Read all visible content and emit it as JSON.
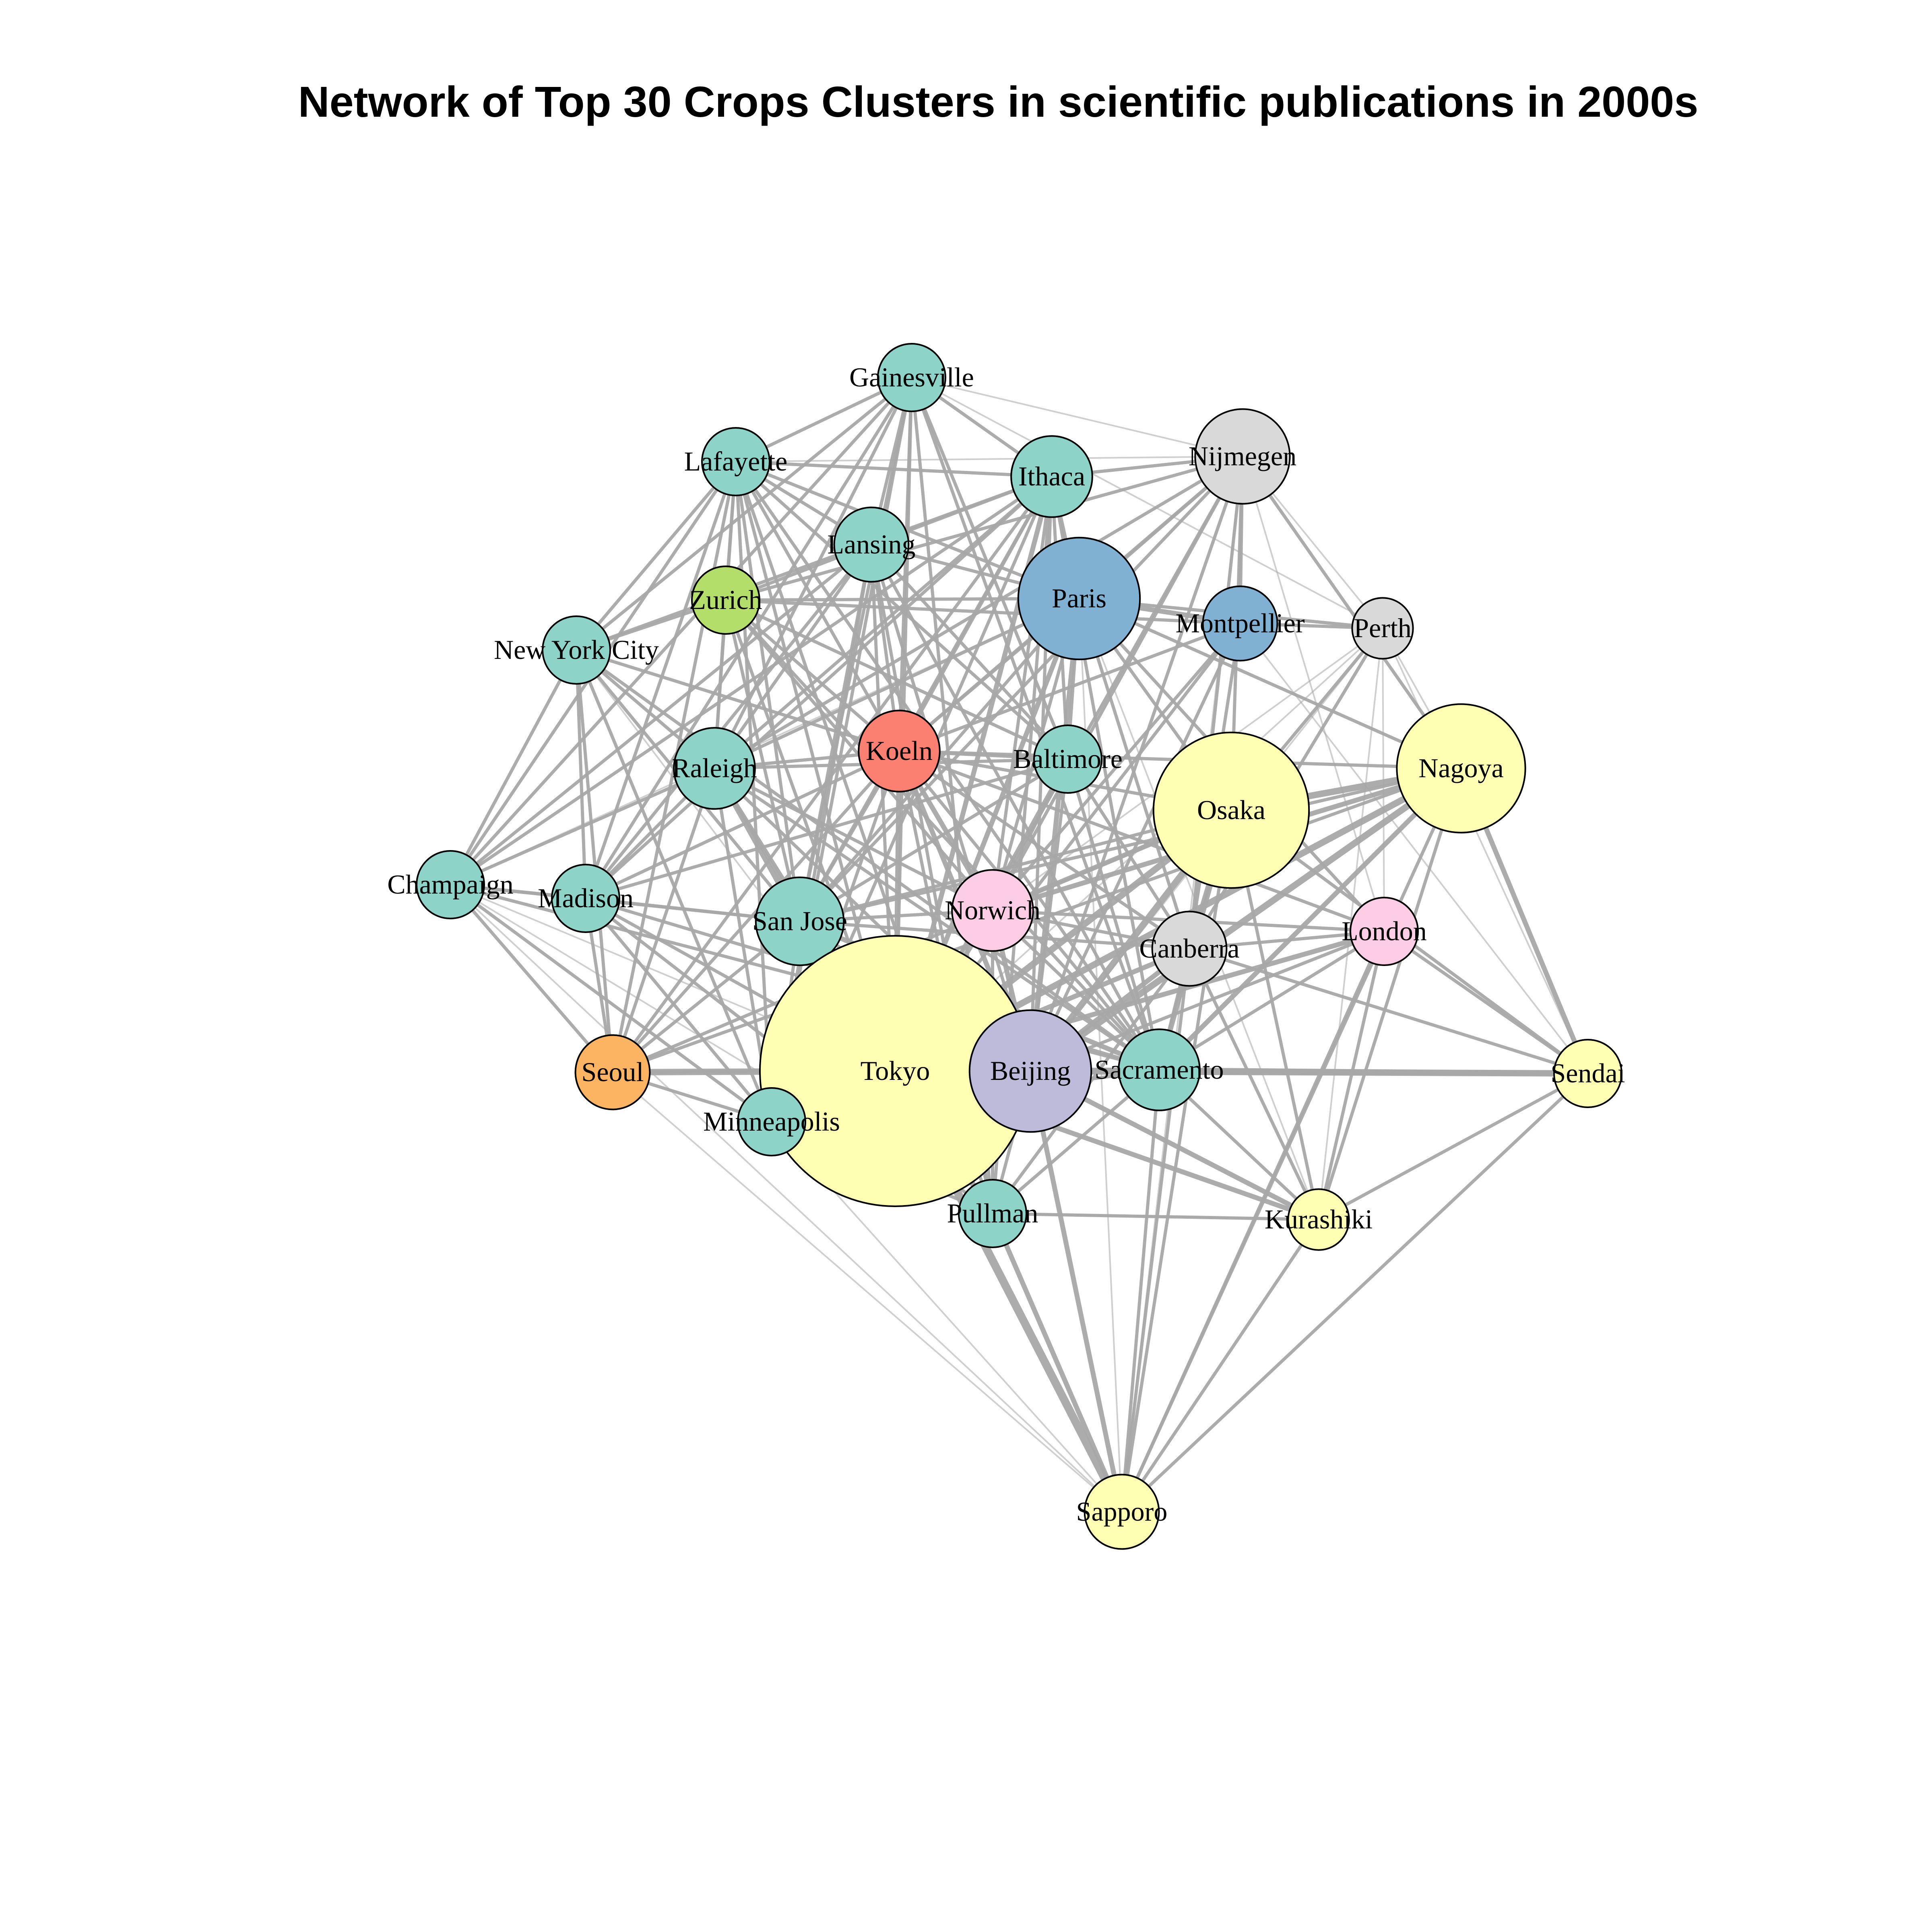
{
  "title": "Network of Top 30 Crops Clusters in scientific publications in 2000s",
  "colors": {
    "edge": "#a8a8a8",
    "teal": "#8dd3c7",
    "light_yellow": "#ffffb3",
    "lavender": "#bebada",
    "salmon": "#fb8072",
    "blue": "#80b1d3",
    "orange": "#fdb462",
    "green": "#b3de69",
    "pink": "#fccde5",
    "grey": "#d9d9d9"
  },
  "nodes": [
    {
      "id": "Gainesville",
      "label": "Gainesville",
      "color": "teal",
      "size": 1
    },
    {
      "id": "Lafayette",
      "label": "Lafayette",
      "color": "teal",
      "size": 1
    },
    {
      "id": "Ithaca",
      "label": "Ithaca",
      "color": "teal",
      "size": 1.2
    },
    {
      "id": "Nijmegen",
      "label": "Nijmegen",
      "color": "grey",
      "size": 1.4
    },
    {
      "id": "Lansing",
      "label": "Lansing",
      "color": "teal",
      "size": 1.1
    },
    {
      "id": "Zurich",
      "label": "Zurich",
      "color": "green",
      "size": 1
    },
    {
      "id": "Paris",
      "label": "Paris",
      "color": "blue",
      "size": 1.8
    },
    {
      "id": "Montpellier",
      "label": "Montpellier",
      "color": "blue",
      "size": 1.1
    },
    {
      "id": "Perth",
      "label": "Perth",
      "color": "grey",
      "size": 0.9
    },
    {
      "id": "New York City",
      "label": "New York City",
      "color": "teal",
      "size": 1
    },
    {
      "id": "Raleigh",
      "label": "Raleigh",
      "color": "teal",
      "size": 1.2
    },
    {
      "id": "Koeln",
      "label": "Koeln",
      "color": "salmon",
      "size": 1.2
    },
    {
      "id": "Baltimore",
      "label": "Baltimore",
      "color": "teal",
      "size": 1
    },
    {
      "id": "Osaka",
      "label": "Osaka",
      "color": "light_yellow",
      "size": 2.3
    },
    {
      "id": "Nagoya",
      "label": "Nagoya",
      "color": "light_yellow",
      "size": 1.9
    },
    {
      "id": "Champaign",
      "label": "Champaign",
      "color": "teal",
      "size": 1
    },
    {
      "id": "Madison",
      "label": "Madison",
      "color": "teal",
      "size": 1
    },
    {
      "id": "San Jose",
      "label": "San Jose",
      "color": "teal",
      "size": 1.3
    },
    {
      "id": "Norwich",
      "label": "Norwich",
      "color": "pink",
      "size": 1.2
    },
    {
      "id": "Canberra",
      "label": "Canberra",
      "color": "grey",
      "size": 1.1
    },
    {
      "id": "London",
      "label": "London",
      "color": "pink",
      "size": 1
    },
    {
      "id": "Seoul",
      "label": "Seoul",
      "color": "orange",
      "size": 1.1
    },
    {
      "id": "Tokyo",
      "label": "Tokyo",
      "color": "light_yellow",
      "size": 4.0
    },
    {
      "id": "Beijing",
      "label": "Beijing",
      "color": "lavender",
      "size": 1.8
    },
    {
      "id": "Sacramento",
      "label": "Sacramento",
      "color": "teal",
      "size": 1.2
    },
    {
      "id": "Sendai",
      "label": "Sendai",
      "color": "light_yellow",
      "size": 1
    },
    {
      "id": "Minneapolis",
      "label": "Minneapolis",
      "color": "teal",
      "size": 1
    },
    {
      "id": "Pullman",
      "label": "Pullman",
      "color": "teal",
      "size": 1
    },
    {
      "id": "Kurashiki",
      "label": "Kurashiki",
      "color": "light_yellow",
      "size": 0.9
    },
    {
      "id": "Sapporo",
      "label": "Sapporo",
      "color": "light_yellow",
      "size": 1.1
    }
  ],
  "edges": [
    [
      "Tokyo",
      "Beijing",
      5
    ],
    [
      "Tokyo",
      "Osaka",
      4
    ],
    [
      "Tokyo",
      "Nagoya",
      4
    ],
    [
      "Tokyo",
      "Sapporo",
      5
    ],
    [
      "Tokyo",
      "Sendai",
      3
    ],
    [
      "Tokyo",
      "Kurashiki",
      3
    ],
    [
      "Tokyo",
      "Pullman",
      3
    ],
    [
      "Tokyo",
      "Seoul",
      4
    ],
    [
      "Tokyo",
      "Paris",
      3
    ],
    [
      "Tokyo",
      "Koeln",
      3
    ],
    [
      "Tokyo",
      "San Jose",
      3
    ],
    [
      "Tokyo",
      "Raleigh",
      2
    ],
    [
      "Tokyo",
      "Norwich",
      3
    ],
    [
      "Tokyo",
      "Canberra",
      3
    ],
    [
      "Tokyo",
      "London",
      3
    ],
    [
      "Tokyo",
      "Minneapolis",
      2
    ],
    [
      "Tokyo",
      "Madison",
      2
    ],
    [
      "Tokyo",
      "Champaign",
      1
    ],
    [
      "Tokyo",
      "Lafayette",
      2
    ],
    [
      "Tokyo",
      "Gainesville",
      2
    ],
    [
      "Tokyo",
      "Ithaca",
      3
    ],
    [
      "Tokyo",
      "Nijmegen",
      2
    ],
    [
      "Tokyo",
      "Lansing",
      2
    ],
    [
      "Tokyo",
      "Zurich",
      2
    ],
    [
      "Tokyo",
      "Montpellier",
      2
    ],
    [
      "Tokyo",
      "Perth",
      1
    ],
    [
      "Tokyo",
      "New York City",
      1
    ],
    [
      "Tokyo",
      "Baltimore",
      2
    ],
    [
      "Tokyo",
      "Sacramento",
      3
    ],
    [
      "Beijing",
      "Sendai",
      4
    ],
    [
      "Beijing",
      "Osaka",
      4
    ],
    [
      "Beijing",
      "Nagoya",
      4
    ],
    [
      "Beijing",
      "Sapporo",
      3
    ],
    [
      "Beijing",
      "Kurashiki",
      3
    ],
    [
      "Beijing",
      "Pullman",
      2
    ],
    [
      "Beijing",
      "Paris",
      3
    ],
    [
      "Beijing",
      "Koeln",
      3
    ],
    [
      "Beijing",
      "Norwich",
      3
    ],
    [
      "Beijing",
      "Canberra",
      3
    ],
    [
      "Beijing",
      "London",
      2
    ],
    [
      "Beijing",
      "Seoul",
      2
    ],
    [
      "Beijing",
      "San Jose",
      2
    ],
    [
      "Beijing",
      "Ithaca",
      2
    ],
    [
      "Beijing",
      "Nijmegen",
      2
    ],
    [
      "Beijing",
      "Montpellier",
      2
    ],
    [
      "Beijing",
      "Perth",
      1
    ],
    [
      "Beijing",
      "Baltimore",
      2
    ],
    [
      "Beijing",
      "Raleigh",
      2
    ],
    [
      "Beijing",
      "Lansing",
      2
    ],
    [
      "Sacramento",
      "Sendai",
      3
    ],
    [
      "Sacramento",
      "Osaka",
      3
    ],
    [
      "Sacramento",
      "Nagoya",
      3
    ],
    [
      "Sacramento",
      "Sapporo",
      2
    ],
    [
      "Sacramento",
      "Kurashiki",
      2
    ],
    [
      "Osaka",
      "Nagoya",
      4
    ],
    [
      "Osaka",
      "Sendai",
      2
    ],
    [
      "Osaka",
      "Kurashiki",
      2
    ],
    [
      "Osaka",
      "Sapporo",
      2
    ],
    [
      "Osaka",
      "Paris",
      2
    ],
    [
      "Osaka",
      "Norwich",
      3
    ],
    [
      "Osaka",
      "Koeln",
      2
    ],
    [
      "Osaka",
      "San Jose",
      2
    ],
    [
      "Osaka",
      "Seoul",
      2
    ],
    [
      "Osaka",
      "Perth",
      2
    ],
    [
      "Osaka",
      "Nijmegen",
      2
    ],
    [
      "Osaka",
      "Canberra",
      3
    ],
    [
      "Nagoya",
      "Sendai",
      3
    ],
    [
      "Nagoya",
      "Kurashiki",
      2
    ],
    [
      "Nagoya",
      "Sapporo",
      2
    ],
    [
      "Nagoya",
      "Norwich",
      3
    ],
    [
      "Nagoya",
      "Paris",
      2
    ],
    [
      "Nagoya",
      "Nijmegen",
      2
    ],
    [
      "Nagoya",
      "Perth",
      1
    ],
    [
      "Nagoya",
      "Koeln",
      2
    ],
    [
      "Nagoya",
      "Seoul",
      2
    ],
    [
      "Nagoya",
      "San Jose",
      2
    ],
    [
      "Sapporo",
      "Pullman",
      3
    ],
    [
      "Sapporo",
      "Sendai",
      2
    ],
    [
      "Sapporo",
      "Kurashiki",
      2
    ],
    [
      "Sapporo",
      "London",
      2
    ],
    [
      "Sapporo",
      "Canberra",
      2
    ],
    [
      "Sapporo",
      "Seoul",
      1
    ],
    [
      "Sapporo",
      "Minneapolis",
      1
    ],
    [
      "Sapporo",
      "Paris",
      1
    ],
    [
      "Sapporo",
      "Nijmegen",
      1
    ],
    [
      "Sendai",
      "London",
      2
    ],
    [
      "Sendai",
      "Perth",
      1
    ],
    [
      "Sendai",
      "Kurashiki",
      2
    ],
    [
      "Sendai",
      "Canberra",
      2
    ],
    [
      "Sendai",
      "Seoul",
      1
    ],
    [
      "Sendai",
      "Montpellier",
      1
    ],
    [
      "Kurashiki",
      "Pullman",
      2
    ],
    [
      "Kurashiki",
      "London",
      2
    ],
    [
      "Kurashiki",
      "Canberra",
      2
    ],
    [
      "Kurashiki",
      "Perth",
      1
    ],
    [
      "Kurashiki",
      "Paris",
      1
    ],
    [
      "Paris",
      "Montpellier",
      3
    ],
    [
      "Paris",
      "Koeln",
      2
    ],
    [
      "Paris",
      "Norwich",
      2
    ],
    [
      "Paris",
      "Zurich",
      2
    ],
    [
      "Paris",
      "Nijmegen",
      2
    ],
    [
      "Paris",
      "Ithaca",
      2
    ],
    [
      "Paris",
      "Lafayette",
      2
    ],
    [
      "Paris",
      "Lansing",
      2
    ],
    [
      "Paris",
      "Raleigh",
      2
    ],
    [
      "Paris",
      "San Jose",
      2
    ],
    [
      "Paris",
      "Perth",
      2
    ],
    [
      "Paris",
      "Canberra",
      2
    ],
    [
      "Paris",
      "London",
      2
    ],
    [
      "Paris",
      "Baltimore",
      2
    ],
    [
      "Paris",
      "Champaign",
      1
    ],
    [
      "Montpellier",
      "Perth",
      2
    ],
    [
      "Montpellier",
      "Nijmegen",
      2
    ],
    [
      "Montpellier",
      "Koeln",
      2
    ],
    [
      "Montpellier",
      "Norwich",
      2
    ],
    [
      "Montpellier",
      "Canberra",
      2
    ],
    [
      "Nijmegen",
      "Ithaca",
      2
    ],
    [
      "Nijmegen",
      "Lafayette",
      1
    ],
    [
      "Nijmegen",
      "Koeln",
      2
    ],
    [
      "Nijmegen",
      "Norwich",
      2
    ],
    [
      "Nijmegen",
      "Zurich",
      2
    ],
    [
      "Nijmegen",
      "Perth",
      1
    ],
    [
      "Nijmegen",
      "London",
      1
    ],
    [
      "Nijmegen",
      "Canberra",
      2
    ],
    [
      "Nijmegen",
      "Raleigh",
      2
    ],
    [
      "Nijmegen",
      "San Jose",
      2
    ],
    [
      "Ithaca",
      "Lafayette",
      2
    ],
    [
      "Ithaca",
      "Gainesville",
      2
    ],
    [
      "Ithaca",
      "Lansing",
      2
    ],
    [
      "Ithaca",
      "Koeln",
      2
    ],
    [
      "Ithaca",
      "Raleigh",
      2
    ],
    [
      "Ithaca",
      "San Jose",
      2
    ],
    [
      "Ithaca",
      "Madison",
      2
    ],
    [
      "Ithaca",
      "Champaign",
      2
    ],
    [
      "Ithaca",
      "New York City",
      2
    ],
    [
      "Ithaca",
      "Minneapolis",
      2
    ],
    [
      "Ithaca",
      "Pullman",
      2
    ],
    [
      "Ithaca",
      "Sacramento",
      2
    ],
    [
      "Ithaca",
      "Seoul",
      2
    ],
    [
      "Ithaca",
      "Norwich",
      2
    ],
    [
      "Ithaca",
      "Baltimore",
      2
    ],
    [
      "Gainesville",
      "Lafayette",
      2
    ],
    [
      "Gainesville",
      "Lansing",
      2
    ],
    [
      "Gainesville",
      "Raleigh",
      2
    ],
    [
      "Gainesville",
      "New York City",
      2
    ],
    [
      "Gainesville",
      "Champaign",
      2
    ],
    [
      "Gainesville",
      "Madison",
      2
    ],
    [
      "Gainesville",
      "San Jose",
      2
    ],
    [
      "Gainesville",
      "Koeln",
      2
    ],
    [
      "Gainesville",
      "Sacramento",
      2
    ],
    [
      "Gainesville",
      "Pullman",
      2
    ],
    [
      "Gainesville",
      "Minneapolis",
      2
    ],
    [
      "Gainesville",
      "Perth",
      1
    ],
    [
      "Gainesville",
      "Nijmegen",
      1
    ],
    [
      "Gainesville",
      "Baltimore",
      2
    ],
    [
      "Lafayette",
      "Lansing",
      2
    ],
    [
      "Lafayette",
      "Zurich",
      2
    ],
    [
      "Lafayette",
      "Raleigh",
      2
    ],
    [
      "Lafayette",
      "New York City",
      2
    ],
    [
      "Lafayette",
      "Champaign",
      2
    ],
    [
      "Lafayette",
      "Madison",
      2
    ],
    [
      "Lafayette",
      "San Jose",
      2
    ],
    [
      "Lafayette",
      "Minneapolis",
      2
    ],
    [
      "Lafayette",
      "Sacramento",
      2
    ],
    [
      "Lafayette",
      "Pullman",
      2
    ],
    [
      "Lafayette",
      "Seoul",
      2
    ],
    [
      "Lafayette",
      "Koeln",
      2
    ],
    [
      "Lafayette",
      "Baltimore",
      2
    ],
    [
      "Lansing",
      "Zurich",
      2
    ],
    [
      "Lansing",
      "Raleigh",
      2
    ],
    [
      "Lansing",
      "Koeln",
      2
    ],
    [
      "Lansing",
      "Madison",
      2
    ],
    [
      "Lansing",
      "San Jose",
      2
    ],
    [
      "Lansing",
      "Champaign",
      2
    ],
    [
      "Lansing",
      "Sacramento",
      2
    ],
    [
      "Lansing",
      "Pullman",
      2
    ],
    [
      "Lansing",
      "Minneapolis",
      2
    ],
    [
      "Lansing",
      "Baltimore",
      2
    ],
    [
      "Zurich",
      "Koeln",
      2
    ],
    [
      "Zurich",
      "Raleigh",
      2
    ],
    [
      "Zurich",
      "New York City",
      2
    ],
    [
      "Zurich",
      "San Jose",
      2
    ],
    [
      "Zurich",
      "Norwich",
      2
    ],
    [
      "Zurich",
      "Sacramento",
      2
    ],
    [
      "Zurich",
      "Baltimore",
      2
    ],
    [
      "Zurich",
      "Montpellier",
      2
    ],
    [
      "New York City",
      "Champaign",
      2
    ],
    [
      "New York City",
      "Madison",
      2
    ],
    [
      "New York City",
      "Raleigh",
      2
    ],
    [
      "New York City",
      "San Jose",
      2
    ],
    [
      "New York City",
      "Seoul",
      2
    ],
    [
      "New York City",
      "Minneapolis",
      2
    ],
    [
      "New York City",
      "Koeln",
      2
    ],
    [
      "New York City",
      "Sacramento",
      2
    ],
    [
      "Raleigh",
      "Koeln",
      2
    ],
    [
      "Raleigh",
      "Madison",
      2
    ],
    [
      "Raleigh",
      "Champaign",
      2
    ],
    [
      "Raleigh",
      "San Jose",
      3
    ],
    [
      "Raleigh",
      "Norwich",
      2
    ],
    [
      "Raleigh",
      "Seoul",
      2
    ],
    [
      "Raleigh",
      "Minneapolis",
      2
    ],
    [
      "Raleigh",
      "Sacramento",
      2
    ],
    [
      "Raleigh",
      "Pullman",
      2
    ],
    [
      "Raleigh",
      "Baltimore",
      2
    ],
    [
      "Koeln",
      "Baltimore",
      2
    ],
    [
      "Koeln",
      "Norwich",
      3
    ],
    [
      "Koeln",
      "San Jose",
      2
    ],
    [
      "Koeln",
      "Canberra",
      2
    ],
    [
      "Koeln",
      "London",
      2
    ],
    [
      "Koeln",
      "Madison",
      2
    ],
    [
      "Koeln",
      "Seoul",
      2
    ],
    [
      "Koeln",
      "Sacramento",
      2
    ],
    [
      "Koeln",
      "Pullman",
      2
    ],
    [
      "Koeln",
      "Minneapolis",
      2
    ],
    [
      "Baltimore",
      "Norwich",
      2
    ],
    [
      "Baltimore",
      "San Jose",
      2
    ],
    [
      "Baltimore",
      "Sacramento",
      2
    ],
    [
      "Baltimore",
      "Canberra",
      2
    ],
    [
      "Baltimore",
      "Madison",
      2
    ],
    [
      "Champaign",
      "Madison",
      2
    ],
    [
      "Champaign",
      "Seoul",
      2
    ],
    [
      "Champaign",
      "Minneapolis",
      2
    ],
    [
      "Champaign",
      "San Jose",
      2
    ],
    [
      "Champaign",
      "Sacramento",
      2
    ],
    [
      "Champaign",
      "Pullman",
      1
    ],
    [
      "Champaign",
      "Sapporo",
      1
    ],
    [
      "Madison",
      "Seoul",
      2
    ],
    [
      "Madison",
      "Minneapolis",
      2
    ],
    [
      "Madison",
      "San Jose",
      2
    ],
    [
      "Madison",
      "Sacramento",
      2
    ],
    [
      "Madison",
      "Pullman",
      2
    ],
    [
      "San Jose",
      "Norwich",
      2
    ],
    [
      "San Jose",
      "Seoul",
      2
    ],
    [
      "San Jose",
      "Minneapolis",
      2
    ],
    [
      "San Jose",
      "Sacramento",
      3
    ],
    [
      "San Jose",
      "Pullman",
      2
    ],
    [
      "San Jose",
      "Canberra",
      2
    ],
    [
      "Norwich",
      "Canberra",
      2
    ],
    [
      "Norwich",
      "London",
      2
    ],
    [
      "Norwich",
      "Sacramento",
      2
    ],
    [
      "Norwich",
      "Pullman",
      2
    ],
    [
      "Canberra",
      "London",
      2
    ],
    [
      "Canberra",
      "Perth",
      2
    ],
    [
      "Canberra",
      "Sacramento",
      2
    ],
    [
      "Canberra",
      "Pullman",
      2
    ],
    [
      "London",
      "Perth",
      1
    ],
    [
      "London",
      "Sacramento",
      2
    ],
    [
      "Seoul",
      "Minneapolis",
      2
    ],
    [
      "Seoul",
      "Sacramento",
      2
    ],
    [
      "Minneapolis",
      "Sacramento",
      2
    ],
    [
      "Minneapolis",
      "Pullman",
      2
    ],
    [
      "Sacramento",
      "Pullman",
      2
    ],
    [
      "Pullman",
      "Kurashiki",
      1
    ],
    [
      "Perth",
      "Norwich",
      1
    ]
  ]
}
